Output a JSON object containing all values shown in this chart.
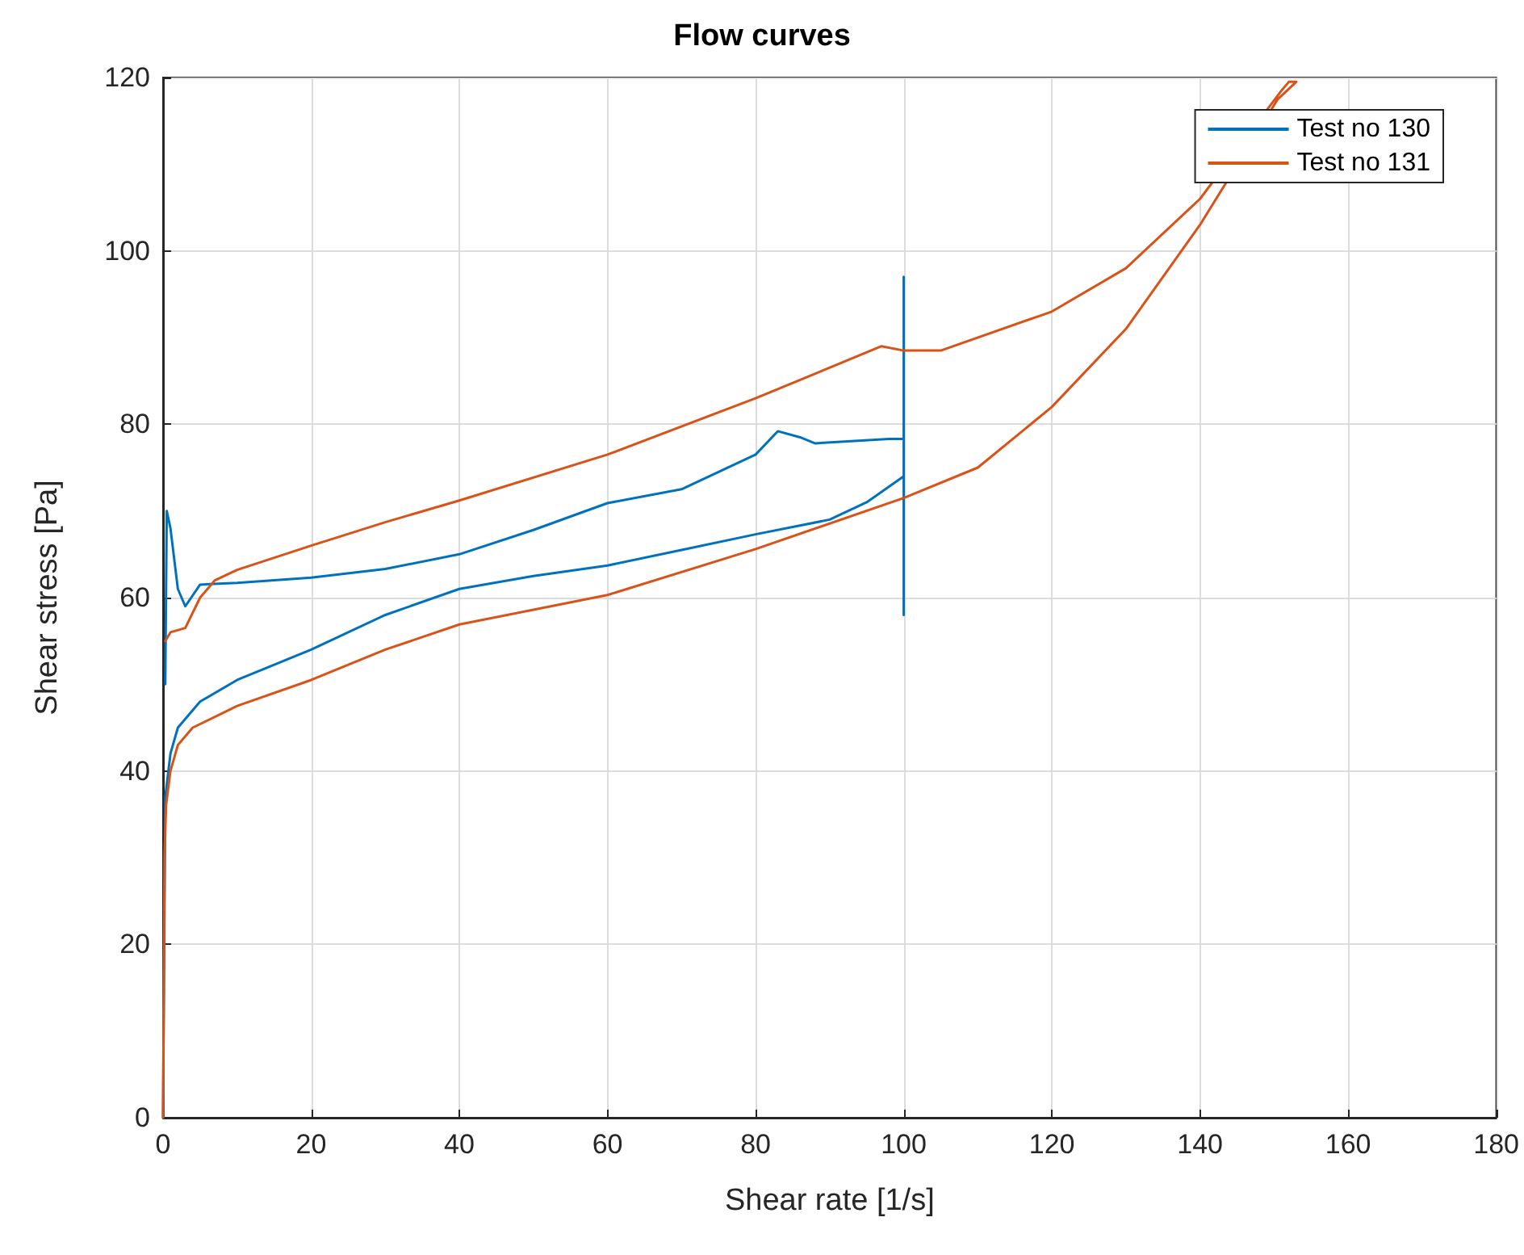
{
  "chart_data": {
    "type": "line",
    "title": "Flow curves",
    "xlabel": "Shear rate [1/s]",
    "ylabel": "Shear stress [Pa]",
    "xlim": [
      0,
      180
    ],
    "xticks": [
      0,
      20,
      40,
      60,
      80,
      100,
      120,
      140,
      160,
      180
    ],
    "ylim": [
      0,
      120
    ],
    "yticks": [
      0,
      20,
      40,
      60,
      80,
      100,
      120
    ],
    "grid": true,
    "legend": "top right",
    "marker": "none",
    "line_style": "solid",
    "series": [
      {
        "name": "Test no 130",
        "color": "#0072bd",
        "x": [
          0,
          0.3,
          1,
          2,
          5,
          10,
          20,
          30,
          40,
          50,
          60,
          70,
          80,
          90,
          95,
          100,
          100,
          100,
          100,
          98,
          92,
          88,
          86,
          83,
          80,
          70,
          60,
          50,
          40,
          30,
          20,
          10,
          5,
          3,
          2,
          1,
          0.5,
          0.3
        ],
        "values": [
          0,
          37,
          42,
          45,
          48,
          50.5,
          54,
          58,
          61,
          62.5,
          63.7,
          65.5,
          67.3,
          69,
          71,
          74,
          97,
          58,
          78.3,
          78.3,
          78,
          77.8,
          78.5,
          79.2,
          76.5,
          72.5,
          70.9,
          67.8,
          65,
          63.3,
          62.3,
          61.7,
          61.5,
          59,
          61,
          68,
          70,
          50
        ]
      },
      {
        "name": "Test no 131",
        "color": "#d95319",
        "x": [
          0,
          0.2,
          0.4,
          1,
          2,
          4,
          10,
          20,
          30,
          40,
          60,
          80,
          100,
          110,
          120,
          130,
          140,
          150.5,
          153,
          152,
          151,
          140,
          130,
          120,
          105,
          100,
          97,
          80,
          60,
          40,
          30,
          20,
          10,
          7,
          5,
          3,
          1,
          0.3
        ],
        "values": [
          0,
          30,
          36,
          40,
          43,
          45,
          47.5,
          50.5,
          54,
          56.9,
          60.3,
          65.6,
          71.5,
          75,
          82,
          91,
          103,
          117.5,
          119.5,
          119.5,
          118.5,
          106,
          98,
          93,
          88.5,
          88.5,
          89,
          83,
          76.5,
          71.2,
          68.7,
          66,
          63.2,
          62,
          60,
          56.5,
          56,
          55
        ]
      }
    ]
  }
}
